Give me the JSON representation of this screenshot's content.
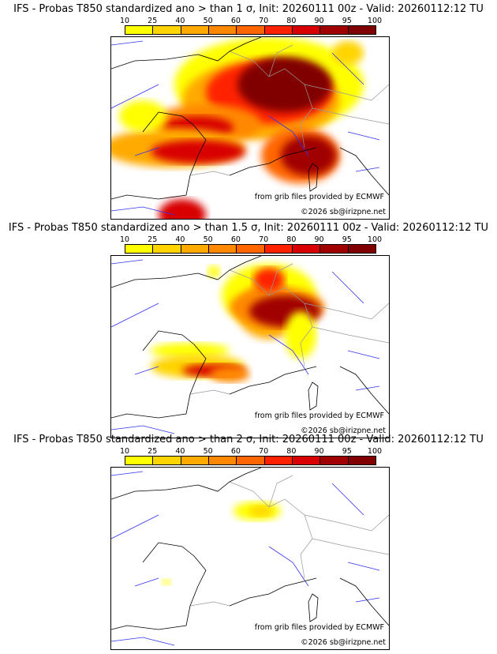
{
  "colorbar": {
    "labels": [
      "10",
      "25",
      "40",
      "50",
      "60",
      "70",
      "80",
      "90",
      "95",
      "100"
    ],
    "colors": [
      "#ffff00",
      "#ffd400",
      "#ffaa00",
      "#ff8800",
      "#ff6600",
      "#ff2200",
      "#d80000",
      "#a00000",
      "#800000",
      "#600000"
    ]
  },
  "panels": [
    {
      "title": "IFS - Probas T850  standardized ano > than 1 σ, Init: 20260111 00z - Valid: 20260112:12 TU",
      "threshold_sigma": 1
    },
    {
      "title": "IFS - Probas T850  standardized ano > than 1.5 σ, Init: 20260111 00z - Valid: 20260112:12 TU",
      "threshold_sigma": 1.5
    },
    {
      "title": "IFS - Probas T850  standardized ano > than 2 σ, Init: 20260111 00z - Valid: 20260112:12 TU",
      "threshold_sigma": 2
    }
  ],
  "credits": {
    "source": "from grib files provided by ECMWF",
    "copyright": "©2026 sb@irizpne.net"
  }
}
